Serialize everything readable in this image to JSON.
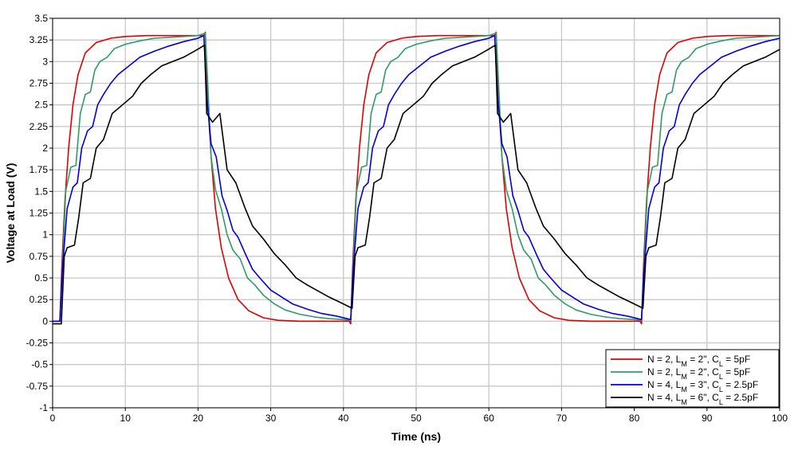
{
  "chart_data": {
    "type": "line",
    "title": "",
    "xlabel": "Time (ns)",
    "ylabel": "Voltage at Load (V)",
    "xlim": [
      0,
      100
    ],
    "ylim": [
      -1,
      3.5
    ],
    "x_ticks": [
      0,
      10,
      20,
      30,
      40,
      50,
      60,
      70,
      80,
      90,
      100
    ],
    "y_ticks": [
      -1,
      -0.75,
      -0.5,
      -0.25,
      0,
      0.25,
      0.5,
      0.75,
      1,
      1.25,
      1.5,
      1.75,
      2,
      2.25,
      2.5,
      2.75,
      3,
      3.25,
      3.5
    ],
    "grid": true,
    "legend_position": "bottom-right",
    "series": [
      {
        "name": "N = 2, LM = 2\", CL = 5pF",
        "legend": {
          "a": "N = 2, L",
          "sub1": "M",
          "b": " = 2\", C",
          "sub2": "L",
          "c": " = 5pF"
        },
        "color": "#e00000",
        "x": [
          0,
          1,
          1.3,
          1.7,
          2.2,
          2.8,
          3.5,
          4.5,
          6,
          8,
          10,
          13,
          16,
          19,
          20.8,
          21,
          21.3,
          21.8,
          22.4,
          23.2,
          24.2,
          25.5,
          27,
          29,
          31,
          34,
          37,
          40,
          40.8,
          41,
          41.3,
          41.7,
          42.2,
          42.8,
          43.5,
          44.5,
          46,
          48,
          50,
          53,
          56,
          59,
          60.8,
          61,
          61.3,
          61.8,
          62.4,
          63.2,
          64.2,
          65.5,
          67,
          69,
          71,
          74,
          77,
          80,
          80.8,
          81,
          81.3,
          81.7,
          82.2,
          82.8,
          83.5,
          84.5,
          86,
          88,
          90,
          93,
          96,
          100
        ],
        "y": [
          0,
          0,
          0.7,
          1.4,
          2.0,
          2.5,
          2.85,
          3.1,
          3.22,
          3.27,
          3.29,
          3.3,
          3.3,
          3.3,
          3.3,
          3.34,
          2.6,
          1.9,
          1.3,
          0.85,
          0.5,
          0.25,
          0.12,
          0.04,
          0.01,
          0,
          0,
          0,
          0,
          -0.03,
          0.7,
          1.4,
          2.0,
          2.5,
          2.85,
          3.1,
          3.22,
          3.27,
          3.29,
          3.3,
          3.3,
          3.3,
          3.3,
          3.34,
          2.6,
          1.9,
          1.3,
          0.85,
          0.5,
          0.25,
          0.12,
          0.04,
          0.01,
          0,
          0,
          0,
          0,
          -0.03,
          0.7,
          1.4,
          2.0,
          2.5,
          2.85,
          3.1,
          3.22,
          3.27,
          3.29,
          3.3,
          3.3,
          3.3
        ]
      },
      {
        "name": "N = 2, LM = 2\", CL = 5pF",
        "legend": {
          "a": "N = 2, L",
          "sub1": "M",
          "b": " = 2\", C",
          "sub2": "L",
          "c": " = 5pF"
        },
        "color": "#2e9c6a",
        "x": [
          0,
          1,
          1.3,
          1.8,
          2.5,
          3.2,
          3.8,
          4.5,
          5.2,
          5.8,
          6.5,
          7.5,
          8.5,
          10,
          12,
          14,
          16,
          18,
          20,
          21,
          21.3,
          21.8,
          22.4,
          23.2,
          24,
          24.8,
          25.8,
          26.8,
          27.8,
          29,
          30.5,
          32,
          34,
          36,
          38,
          40,
          41,
          41.3,
          41.8,
          42.5,
          43.2,
          43.8,
          44.5,
          45.2,
          45.8,
          46.5,
          47.5,
          48.5,
          50,
          52,
          54,
          56,
          58,
          60,
          61,
          61.3,
          61.8,
          62.4,
          63.2,
          64,
          64.8,
          65.8,
          66.8,
          67.8,
          69,
          70.5,
          72,
          74,
          76,
          78,
          80,
          81,
          81.3,
          81.8,
          82.5,
          83.2,
          83.8,
          84.5,
          85.2,
          85.8,
          86.5,
          87.5,
          88.5,
          90,
          92,
          94,
          96,
          98,
          100
        ],
        "y": [
          0,
          0,
          0.5,
          1.5,
          1.78,
          1.8,
          2.4,
          2.62,
          2.65,
          2.9,
          3.0,
          3.05,
          3.15,
          3.2,
          3.24,
          3.27,
          3.28,
          3.29,
          3.3,
          3.33,
          2.8,
          1.9,
          1.52,
          1.3,
          1.0,
          0.82,
          0.72,
          0.5,
          0.42,
          0.3,
          0.2,
          0.13,
          0.08,
          0.05,
          0.03,
          0.02,
          0.01,
          0.55,
          1.5,
          1.78,
          1.8,
          2.4,
          2.62,
          2.65,
          2.9,
          3.0,
          3.05,
          3.15,
          3.2,
          3.24,
          3.27,
          3.28,
          3.29,
          3.3,
          3.33,
          2.8,
          1.9,
          1.52,
          1.3,
          1.0,
          0.82,
          0.72,
          0.5,
          0.42,
          0.3,
          0.2,
          0.13,
          0.08,
          0.05,
          0.03,
          0.02,
          0.01,
          0.55,
          1.5,
          1.78,
          1.8,
          2.4,
          2.62,
          2.65,
          2.9,
          3.0,
          3.05,
          3.15,
          3.2,
          3.24,
          3.27,
          3.28,
          3.29,
          3.3
        ]
      },
      {
        "name": "N = 4, LM = 3\", CL = 2.5pF",
        "legend": {
          "a": "N = 4, L",
          "sub1": "M",
          "b": " = 3\", C",
          "sub2": "L",
          "c": " = 2.5pF"
        },
        "color": "#0000dd",
        "x": [
          0,
          1,
          1.3,
          2,
          2.8,
          3.4,
          4,
          4.8,
          5.5,
          6.2,
          7,
          8,
          9,
          10.5,
          12,
          14,
          16,
          18,
          20,
          20.8,
          21.2,
          21.8,
          22.5,
          23.3,
          24,
          24.8,
          25.5,
          26.5,
          27.5,
          28.5,
          30,
          31.5,
          33,
          35,
          37,
          39,
          41,
          41.3,
          42,
          42.8,
          43.4,
          44,
          44.8,
          45.5,
          46.2,
          47,
          48,
          49,
          50.5,
          52,
          54,
          56,
          58,
          60,
          60.8,
          61.2,
          61.8,
          62.5,
          63.3,
          64,
          64.8,
          65.5,
          66.5,
          67.5,
          68.5,
          70,
          71.5,
          73,
          75,
          77,
          79,
          81,
          81.3,
          82,
          82.8,
          83.4,
          84,
          84.8,
          85.5,
          86.2,
          87,
          88,
          89,
          90.5,
          92,
          94,
          96,
          98,
          100
        ],
        "y": [
          0,
          0,
          0.55,
          1.3,
          1.55,
          1.6,
          2.0,
          2.2,
          2.25,
          2.5,
          2.62,
          2.75,
          2.85,
          2.95,
          3.05,
          3.12,
          3.18,
          3.23,
          3.27,
          3.3,
          2.6,
          2.05,
          1.9,
          1.45,
          1.28,
          1.05,
          0.97,
          0.78,
          0.6,
          0.5,
          0.36,
          0.28,
          0.2,
          0.14,
          0.09,
          0.06,
          0.02,
          0.55,
          1.3,
          1.55,
          1.6,
          2.0,
          2.2,
          2.25,
          2.5,
          2.62,
          2.75,
          2.85,
          2.95,
          3.05,
          3.12,
          3.18,
          3.23,
          3.27,
          3.3,
          2.6,
          2.05,
          1.9,
          1.45,
          1.28,
          1.05,
          0.97,
          0.78,
          0.6,
          0.5,
          0.36,
          0.28,
          0.2,
          0.14,
          0.09,
          0.06,
          0.02,
          0.55,
          1.3,
          1.55,
          1.6,
          2.0,
          2.2,
          2.25,
          2.5,
          2.62,
          2.75,
          2.85,
          2.95,
          3.05,
          3.12,
          3.18,
          3.23,
          3.27
        ]
      },
      {
        "name": "N = 4, LM = 6\", CL = 2.5pF",
        "legend": {
          "a": "N = 4, L",
          "sub1": "M",
          "b": " = 6\", C",
          "sub2": "L",
          "c": " = 2.5pF"
        },
        "color": "#000000",
        "x": [
          0,
          1.2,
          1.6,
          2,
          3,
          3.6,
          4.2,
          5.2,
          6,
          7,
          8.2,
          9.6,
          11,
          12.2,
          13.5,
          15,
          16.5,
          18,
          19.5,
          20.9,
          21.2,
          22,
          23,
          24,
          25.2,
          26.5,
          27.5,
          29,
          30.5,
          32,
          33.5,
          35,
          36.5,
          38,
          39.5,
          41.2,
          41.6,
          42,
          43,
          43.6,
          44.2,
          45.2,
          46,
          47,
          48.2,
          49.6,
          51,
          52.2,
          53.5,
          55,
          56.5,
          58,
          59.5,
          60.9,
          61.2,
          62,
          63,
          64,
          65.2,
          66.5,
          67.5,
          69,
          70.5,
          72,
          73.5,
          75,
          76.5,
          78,
          79.5,
          81.2,
          81.6,
          82,
          83,
          83.6,
          84.2,
          85.2,
          86,
          87,
          88.2,
          89.6,
          91,
          92.2,
          93.5,
          95,
          96.5,
          98,
          100
        ],
        "y": [
          -0.03,
          -0.03,
          0.75,
          0.85,
          0.88,
          1.2,
          1.6,
          1.65,
          2.0,
          2.1,
          2.4,
          2.5,
          2.6,
          2.75,
          2.85,
          2.95,
          3.0,
          3.05,
          3.12,
          3.19,
          2.4,
          2.3,
          2.4,
          1.75,
          1.6,
          1.3,
          1.1,
          0.95,
          0.78,
          0.65,
          0.5,
          0.42,
          0.35,
          0.28,
          0.22,
          0.15,
          0.75,
          0.85,
          0.88,
          1.2,
          1.6,
          1.65,
          2.0,
          2.1,
          2.4,
          2.5,
          2.6,
          2.75,
          2.85,
          2.95,
          3.0,
          3.05,
          3.12,
          3.19,
          2.4,
          2.3,
          2.4,
          1.75,
          1.6,
          1.3,
          1.1,
          0.95,
          0.78,
          0.65,
          0.5,
          0.42,
          0.35,
          0.28,
          0.22,
          0.15,
          0.75,
          0.85,
          0.88,
          1.2,
          1.6,
          1.65,
          2.0,
          2.1,
          2.4,
          2.5,
          2.6,
          2.75,
          2.85,
          2.95,
          3.0,
          3.05,
          3.14
        ]
      }
    ]
  }
}
